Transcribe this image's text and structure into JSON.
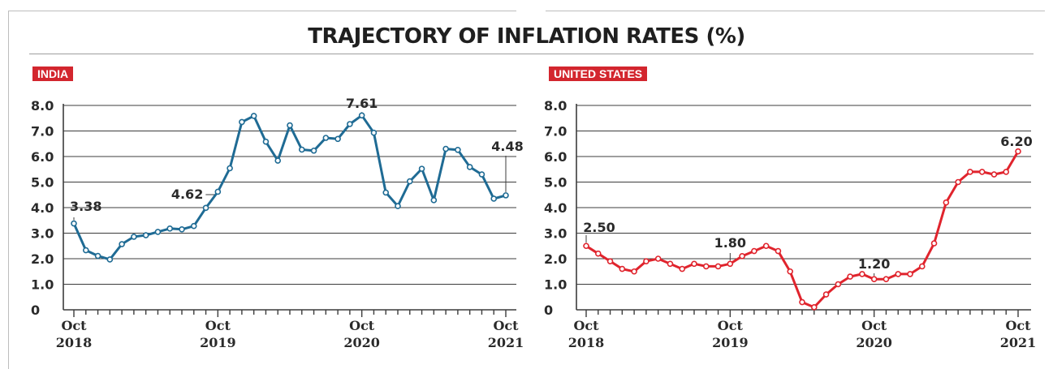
{
  "title": "TRAJECTORY OF INFLATION RATES (%)",
  "colors": {
    "india_line": "#1f6b94",
    "us_line": "#e0242d",
    "label_bg": "#d3262e",
    "grid": "#3c3c3c"
  },
  "chart_data": [
    {
      "type": "line",
      "title": "INDIA",
      "ylim": [
        0,
        8.0
      ],
      "yticks": [
        "0",
        "1.0",
        "2.0",
        "3.0",
        "4.0",
        "5.0",
        "6.0",
        "7.0",
        "8.0"
      ],
      "xtick_labels": [
        {
          "month": "Oct",
          "year": "2018",
          "index": 0
        },
        {
          "month": "Oct",
          "year": "2019",
          "index": 12
        },
        {
          "month": "Oct",
          "year": "2020",
          "index": 24
        },
        {
          "month": "Oct",
          "year": "2021",
          "index": 36
        }
      ],
      "x": [
        "Oct 2018",
        "Nov 2018",
        "Dec 2018",
        "Jan 2019",
        "Feb 2019",
        "Mar 2019",
        "Apr 2019",
        "May 2019",
        "Jun 2019",
        "Jul 2019",
        "Aug 2019",
        "Sep 2019",
        "Oct 2019",
        "Nov 2019",
        "Dec 2019",
        "Jan 2020",
        "Feb 2020",
        "Mar 2020",
        "Apr 2020",
        "May 2020",
        "Jun 2020",
        "Jul 2020",
        "Aug 2020",
        "Sep 2020",
        "Oct 2020",
        "Nov 2020",
        "Dec 2020",
        "Jan 2021",
        "Feb 2021",
        "Mar 2021",
        "Apr 2021",
        "May 2021",
        "Jun 2021",
        "Jul 2021",
        "Aug 2021",
        "Sep 2021",
        "Oct 2021"
      ],
      "series": [
        {
          "values": [
            3.38,
            2.33,
            2.11,
            1.97,
            2.57,
            2.86,
            2.92,
            3.05,
            3.18,
            3.15,
            3.28,
            3.99,
            4.62,
            5.54,
            7.35,
            7.59,
            6.58,
            5.84,
            7.22,
            6.27,
            6.23,
            6.73,
            6.69,
            7.27,
            7.61,
            6.93,
            4.59,
            4.06,
            5.03,
            5.52,
            4.29,
            6.3,
            6.26,
            5.59,
            5.3,
            4.35,
            4.48
          ]
        }
      ],
      "annotations": [
        {
          "label": "3.38",
          "index": 0
        },
        {
          "label": "4.62",
          "index": 12
        },
        {
          "label": "7.61",
          "index": 24
        },
        {
          "label": "4.48",
          "index": 36
        }
      ]
    },
    {
      "type": "line",
      "title": "UNITED STATES",
      "ylim": [
        0,
        8.0
      ],
      "yticks": [
        "0",
        "1.0",
        "2.0",
        "3.0",
        "4.0",
        "5.0",
        "6.0",
        "7.0",
        "8.0"
      ],
      "xtick_labels": [
        {
          "month": "Oct",
          "year": "2018",
          "index": 0
        },
        {
          "month": "Oct",
          "year": "2019",
          "index": 12
        },
        {
          "month": "Oct",
          "year": "2020",
          "index": 24
        },
        {
          "month": "Oct",
          "year": "2021",
          "index": 36
        }
      ],
      "x": [
        "Oct 2018",
        "Nov 2018",
        "Dec 2018",
        "Jan 2019",
        "Feb 2019",
        "Mar 2019",
        "Apr 2019",
        "May 2019",
        "Jun 2019",
        "Jul 2019",
        "Aug 2019",
        "Sep 2019",
        "Oct 2019",
        "Nov 2019",
        "Dec 2019",
        "Jan 2020",
        "Feb 2020",
        "Mar 2020",
        "Apr 2020",
        "May 2020",
        "Jun 2020",
        "Jul 2020",
        "Aug 2020",
        "Sep 2020",
        "Oct 2020",
        "Nov 2020",
        "Dec 2020",
        "Jan 2021",
        "Feb 2021",
        "Mar 2021",
        "Apr 2021",
        "May 2021",
        "Jun 2021",
        "Jul 2021",
        "Aug 2021",
        "Sep 2021",
        "Oct 2021"
      ],
      "series": [
        {
          "values": [
            2.5,
            2.2,
            1.9,
            1.6,
            1.5,
            1.9,
            2.0,
            1.8,
            1.6,
            1.8,
            1.7,
            1.7,
            1.8,
            2.1,
            2.3,
            2.5,
            2.3,
            1.5,
            0.3,
            0.1,
            0.6,
            1.0,
            1.3,
            1.4,
            1.2,
            1.2,
            1.4,
            1.4,
            1.7,
            2.6,
            4.2,
            5.0,
            5.4,
            5.4,
            5.3,
            5.4,
            6.2
          ]
        }
      ],
      "annotations": [
        {
          "label": "2.50",
          "index": 0
        },
        {
          "label": "1.80",
          "index": 12
        },
        {
          "label": "1.20",
          "index": 24
        },
        {
          "label": "6.20",
          "index": 36
        }
      ]
    }
  ]
}
